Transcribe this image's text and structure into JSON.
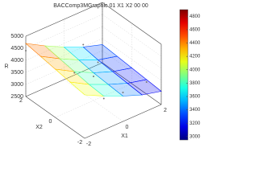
{
  "chart_data": {
    "type": "surface",
    "title": "BACComp3MGraphic 01 X1 X2 00 00",
    "xlabel": "X1",
    "ylabel": "X2",
    "zlabel": "R",
    "x": [
      -2,
      -1,
      0,
      1,
      2
    ],
    "y": [
      -2,
      -1,
      0,
      1,
      2
    ],
    "z": [
      [
        4300,
        3900,
        3550,
        3250,
        3050
      ],
      [
        4400,
        3950,
        3600,
        3300,
        3100
      ],
      [
        4500,
        4050,
        3650,
        3350,
        3150
      ],
      [
        4600,
        4150,
        3750,
        3400,
        3200
      ],
      [
        4700,
        4250,
        3850,
        3500,
        3250
      ]
    ],
    "points": {
      "x": [
        -2,
        -1,
        0,
        0,
        1,
        2,
        -1,
        1
      ],
      "y": [
        2,
        0,
        0,
        -2,
        1,
        -1,
        -2,
        2
      ],
      "z": [
        4400,
        4000,
        3500,
        3700,
        3300,
        3000,
        3800,
        3600
      ]
    },
    "xlim": [
      -2,
      2
    ],
    "ylim": [
      -2,
      2
    ],
    "zlim": [
      2500,
      5000
    ],
    "xticks": [
      -2,
      0,
      2
    ],
    "yticks": [
      -2,
      0,
      2
    ],
    "zticks": [
      2500,
      3000,
      3500,
      4000,
      4500,
      5000
    ],
    "clim": [
      2950,
      4900
    ],
    "cticks": [
      3000,
      3200,
      3400,
      3600,
      3800,
      4000,
      4200,
      4400,
      4600,
      4800
    ],
    "grid": true,
    "colormap": "jet"
  }
}
